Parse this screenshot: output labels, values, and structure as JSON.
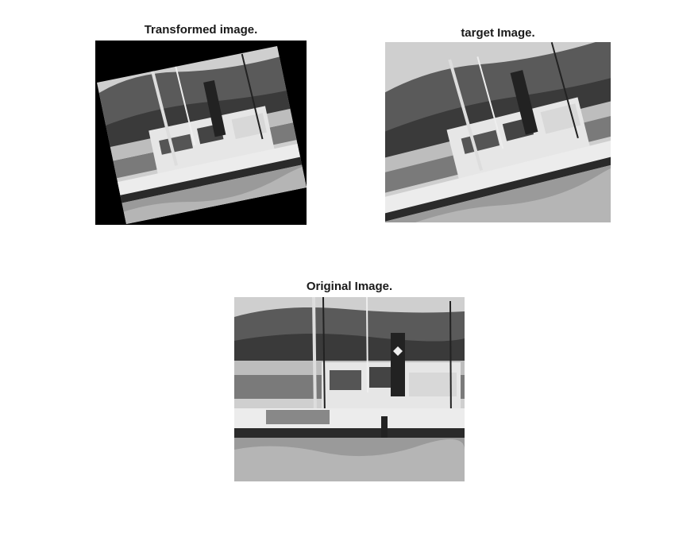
{
  "figure": {
    "panels": [
      {
        "title": "Transformed image."
      },
      {
        "title": "target Image."
      },
      {
        "title": "Original Image."
      }
    ]
  },
  "colors": {
    "background": "#ffffff",
    "transformed_fill": "#000000",
    "image_tone": "grayscale"
  }
}
